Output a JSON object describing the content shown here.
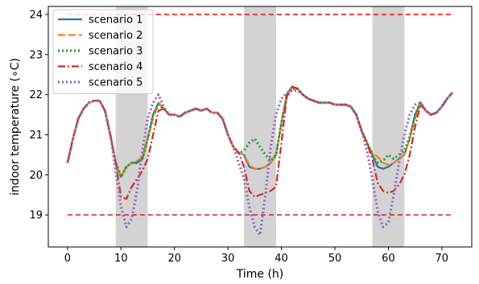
{
  "chart_data": {
    "type": "line",
    "xlabel": "Time (h)",
    "ylabel": "indoor temperature (∘C)",
    "xlim": [
      -3.6,
      75.6
    ],
    "ylim": [
      18.2,
      24.2
    ],
    "xticks": [
      0,
      10,
      20,
      30,
      40,
      50,
      60,
      70
    ],
    "yticks": [
      19,
      20,
      21,
      22,
      23,
      24
    ],
    "grid": false,
    "legend_position": "top-left",
    "shaded_intervals": [
      [
        9,
        15
      ],
      [
        33,
        39
      ],
      [
        57,
        63
      ]
    ],
    "shade_color": "#d3d3d3",
    "reference_lines": [
      {
        "y": 24,
        "color": "#e8181c",
        "style": "dashed"
      },
      {
        "y": 19,
        "color": "#e8181c",
        "style": "dashed"
      }
    ],
    "x": [
      0,
      1,
      2,
      3,
      4,
      5,
      6,
      7,
      8,
      9,
      10,
      11,
      12,
      13,
      14,
      15,
      16,
      17,
      18,
      19,
      20,
      21,
      22,
      23,
      24,
      25,
      26,
      27,
      28,
      29,
      30,
      31,
      32,
      33,
      34,
      35,
      36,
      37,
      38,
      39,
      40,
      41,
      42,
      43,
      44,
      45,
      46,
      47,
      48,
      49,
      50,
      51,
      52,
      53,
      54,
      55,
      56,
      57,
      58,
      59,
      60,
      61,
      62,
      63,
      64,
      65,
      66,
      67,
      68,
      69,
      70,
      71,
      72
    ],
    "series": [
      {
        "name": "scenario 1",
        "color": "#1f77b4",
        "style": "solid",
        "values": [
          20.3,
          20.9,
          21.4,
          21.65,
          21.8,
          21.85,
          21.85,
          21.6,
          21.0,
          20.3,
          19.95,
          20.2,
          20.3,
          20.3,
          20.4,
          20.9,
          21.5,
          21.8,
          21.65,
          21.5,
          21.5,
          21.45,
          21.55,
          21.6,
          21.65,
          21.6,
          21.65,
          21.55,
          21.55,
          21.4,
          21.0,
          20.7,
          20.55,
          20.5,
          20.2,
          20.15,
          20.15,
          20.2,
          20.3,
          20.5,
          21.3,
          22.0,
          22.2,
          22.15,
          22.0,
          21.9,
          21.85,
          21.8,
          21.8,
          21.8,
          21.75,
          21.75,
          21.75,
          21.7,
          21.5,
          21.1,
          20.8,
          20.5,
          20.2,
          20.15,
          20.2,
          20.3,
          20.4,
          20.5,
          20.9,
          21.5,
          21.8,
          21.6,
          21.5,
          21.55,
          21.7,
          21.9,
          22.05
        ]
      },
      {
        "name": "scenario 2",
        "color": "#ff7f0e",
        "style": "dashed",
        "values": [
          20.3,
          20.9,
          21.4,
          21.65,
          21.8,
          21.85,
          21.85,
          21.6,
          21.0,
          20.3,
          19.95,
          20.2,
          20.3,
          20.35,
          20.45,
          20.9,
          21.4,
          21.8,
          21.65,
          21.5,
          21.5,
          21.45,
          21.55,
          21.6,
          21.65,
          21.6,
          21.65,
          21.55,
          21.55,
          21.4,
          21.0,
          20.7,
          20.55,
          20.5,
          20.25,
          20.15,
          20.15,
          20.2,
          20.3,
          20.5,
          21.3,
          22.0,
          22.15,
          22.15,
          22.0,
          21.9,
          21.85,
          21.8,
          21.8,
          21.8,
          21.75,
          21.75,
          21.75,
          21.7,
          21.5,
          21.1,
          20.8,
          20.55,
          20.45,
          20.3,
          20.25,
          20.3,
          20.4,
          20.5,
          20.9,
          21.4,
          21.75,
          21.6,
          21.5,
          21.55,
          21.7,
          21.9,
          22.05
        ]
      },
      {
        "name": "scenario 3",
        "color": "#2ca02c",
        "style": "dotted",
        "values": [
          20.3,
          20.9,
          21.4,
          21.65,
          21.8,
          21.85,
          21.85,
          21.6,
          21.0,
          20.3,
          19.95,
          20.2,
          20.3,
          20.3,
          20.4,
          20.9,
          21.5,
          21.75,
          21.65,
          21.5,
          21.5,
          21.45,
          21.55,
          21.6,
          21.65,
          21.6,
          21.65,
          21.55,
          21.55,
          21.4,
          21.0,
          20.7,
          20.55,
          20.6,
          20.8,
          20.9,
          20.7,
          20.5,
          20.35,
          20.5,
          21.3,
          21.95,
          22.15,
          22.15,
          22.0,
          21.9,
          21.85,
          21.8,
          21.8,
          21.8,
          21.75,
          21.75,
          21.75,
          21.7,
          21.5,
          21.1,
          20.8,
          20.5,
          20.3,
          20.35,
          20.5,
          20.4,
          20.5,
          20.6,
          20.95,
          21.5,
          21.8,
          21.6,
          21.5,
          21.55,
          21.7,
          21.9,
          22.05
        ]
      },
      {
        "name": "scenario 4",
        "color": "#d62728",
        "style": "dashdot",
        "values": [
          20.3,
          20.9,
          21.4,
          21.65,
          21.8,
          21.85,
          21.85,
          21.6,
          21.0,
          20.3,
          19.45,
          19.4,
          19.7,
          19.9,
          20.1,
          20.4,
          21.0,
          21.6,
          21.65,
          21.5,
          21.5,
          21.45,
          21.55,
          21.6,
          21.65,
          21.6,
          21.65,
          21.55,
          21.55,
          21.4,
          21.0,
          20.7,
          20.55,
          20.2,
          19.6,
          19.45,
          19.5,
          19.55,
          19.6,
          19.7,
          20.8,
          21.95,
          22.2,
          22.15,
          22.0,
          21.9,
          21.85,
          21.8,
          21.8,
          21.8,
          21.75,
          21.75,
          21.75,
          21.7,
          21.5,
          21.1,
          20.8,
          20.4,
          19.8,
          19.6,
          19.55,
          19.6,
          19.75,
          20.0,
          20.5,
          21.2,
          21.75,
          21.6,
          21.5,
          21.55,
          21.7,
          21.9,
          22.05
        ]
      },
      {
        "name": "scenario 5",
        "color": "#9467bd",
        "style": "dotted",
        "values": [
          20.3,
          20.9,
          21.4,
          21.65,
          21.8,
          21.85,
          21.85,
          21.6,
          21.0,
          20.1,
          19.2,
          18.7,
          18.9,
          19.6,
          20.6,
          21.4,
          21.8,
          22.0,
          21.7,
          21.5,
          21.5,
          21.45,
          21.55,
          21.6,
          21.65,
          21.6,
          21.65,
          21.55,
          21.55,
          21.4,
          21.0,
          20.7,
          20.3,
          19.9,
          19.2,
          18.7,
          18.5,
          19.5,
          20.7,
          21.5,
          21.9,
          22.05,
          22.1,
          22.1,
          22.0,
          21.9,
          21.85,
          21.8,
          21.8,
          21.8,
          21.75,
          21.75,
          21.75,
          21.7,
          21.5,
          21.1,
          20.6,
          19.9,
          19.1,
          18.7,
          18.8,
          19.5,
          20.3,
          21.0,
          21.5,
          21.75,
          21.8,
          21.6,
          21.5,
          21.55,
          21.7,
          21.9,
          22.05
        ]
      }
    ]
  }
}
